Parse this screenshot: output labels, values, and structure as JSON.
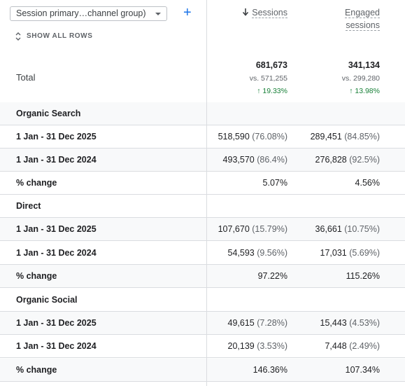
{
  "dimension_selector": {
    "label": "Session primary…channel group)"
  },
  "add_button": {
    "label": "+"
  },
  "show_all_rows": {
    "label": "SHOW ALL ROWS"
  },
  "columns": {
    "sessions": {
      "label": "Sessions",
      "sorted": "descending"
    },
    "engaged_sessions": {
      "label_line1": "Engaged",
      "label_line2": "sessions"
    }
  },
  "total": {
    "label": "Total",
    "sessions": {
      "value": "681,673",
      "vs": "vs. 571,255",
      "change": "19.33%"
    },
    "engaged_sessions": {
      "value": "341,134",
      "vs": "vs. 299,280",
      "change": "13.98%"
    }
  },
  "groups": [
    {
      "name": "Organic Search",
      "rows": [
        {
          "label": "1 Jan - 31 Dec 2025",
          "sessions": "518,590",
          "sessions_share": "(76.08%)",
          "engaged": "289,451",
          "engaged_share": "(84.85%)"
        },
        {
          "label": "1 Jan - 31 Dec 2024",
          "sessions": "493,570",
          "sessions_share": "(86.4%)",
          "engaged": "276,828",
          "engaged_share": "(92.5%)"
        },
        {
          "label": "% change",
          "sessions": "5.07%",
          "engaged": "4.56%"
        }
      ]
    },
    {
      "name": "Direct",
      "rows": [
        {
          "label": "1 Jan - 31 Dec 2025",
          "sessions": "107,670",
          "sessions_share": "(15.79%)",
          "engaged": "36,661",
          "engaged_share": "(10.75%)"
        },
        {
          "label": "1 Jan - 31 Dec 2024",
          "sessions": "54,593",
          "sessions_share": "(9.56%)",
          "engaged": "17,031",
          "engaged_share": "(5.69%)"
        },
        {
          "label": "% change",
          "sessions": "97.22%",
          "engaged": "115.26%"
        }
      ]
    },
    {
      "name": "Organic Social",
      "rows": [
        {
          "label": "1 Jan - 31 Dec 2025",
          "sessions": "49,615",
          "sessions_share": "(7.28%)",
          "engaged": "15,443",
          "engaged_share": "(4.53%)"
        },
        {
          "label": "1 Jan - 31 Dec 2024",
          "sessions": "20,139",
          "sessions_share": "(3.53%)",
          "engaged": "7,448",
          "engaged_share": "(2.49%)"
        },
        {
          "label": "% change",
          "sessions": "146.36%",
          "engaged": "107.34%"
        }
      ]
    }
  ],
  "colors": {
    "accent": "#1a73e8",
    "positive": "#188038",
    "divider": "#dadce0",
    "group_bg": "#f8f9fa"
  }
}
